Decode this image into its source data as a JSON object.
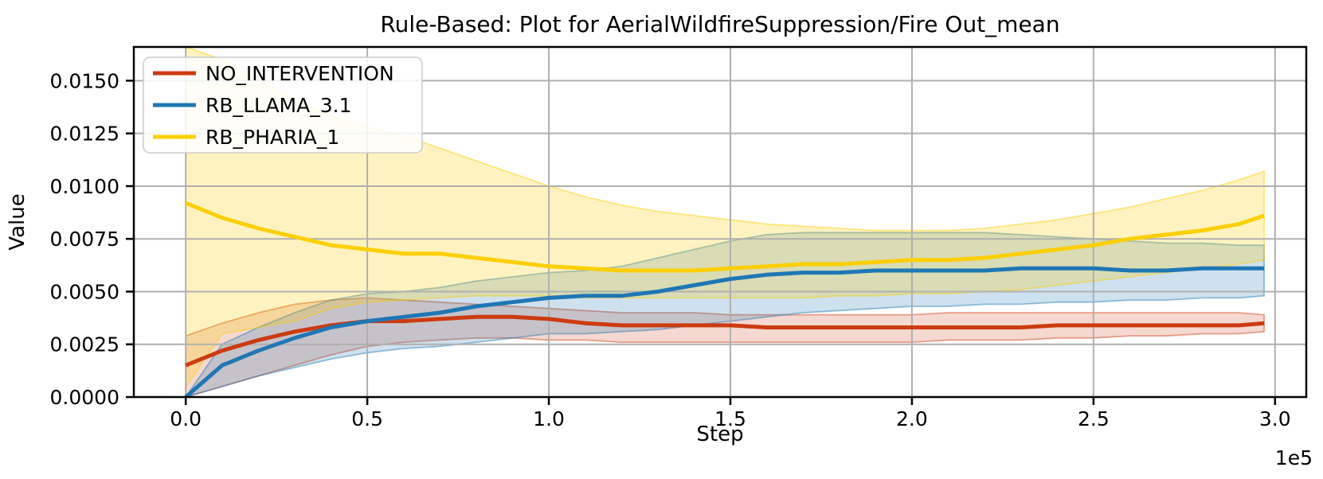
{
  "chart_data": {
    "type": "line",
    "title": "Rule-Based: Plot for AerialWildfireSuppression/Fire Out_mean",
    "xlabel": "Step",
    "ylabel": "Value",
    "x_offset_label": "1e5",
    "xlim": [
      -0.143,
      3.086
    ],
    "ylim": [
      0.0,
      0.0166
    ],
    "grid": true,
    "legend_position": "upper left",
    "xticks": {
      "values": [
        0.0,
        0.5,
        1.0,
        1.5,
        2.0,
        2.5,
        3.0
      ],
      "labels": [
        "0.0",
        "0.5",
        "1.0",
        "1.5",
        "2.0",
        "2.5",
        "3.0"
      ]
    },
    "yticks": {
      "values": [
        0.0,
        0.0025,
        0.005,
        0.0075,
        0.01,
        0.0125,
        0.015
      ],
      "labels": [
        "0.0000",
        "0.0025",
        "0.0050",
        "0.0075",
        "0.0100",
        "0.0125",
        "0.0150"
      ]
    },
    "x": [
      0.0,
      0.1,
      0.2,
      0.3,
      0.4,
      0.5,
      0.6,
      0.7,
      0.8,
      0.9,
      1.0,
      1.1,
      1.2,
      1.3,
      1.4,
      1.5,
      1.6,
      1.7,
      1.8,
      1.9,
      2.0,
      2.1,
      2.2,
      2.3,
      2.4,
      2.5,
      2.6,
      2.7,
      2.8,
      2.9,
      2.97
    ],
    "series": [
      {
        "name": "NO_INTERVENTION",
        "color": "#cc3b11",
        "band_alpha": 0.2,
        "values": [
          0.0015,
          0.0022,
          0.0027,
          0.0031,
          0.0034,
          0.0036,
          0.0036,
          0.0037,
          0.0038,
          0.0038,
          0.0037,
          0.0035,
          0.0034,
          0.0034,
          0.0034,
          0.0034,
          0.0033,
          0.0033,
          0.0033,
          0.0033,
          0.0033,
          0.0033,
          0.0033,
          0.0033,
          0.0034,
          0.0034,
          0.0034,
          0.0034,
          0.0034,
          0.0034,
          0.0035
        ],
        "band_low": [
          0.0,
          0.0005,
          0.001,
          0.0015,
          0.002,
          0.0024,
          0.0026,
          0.0027,
          0.0028,
          0.0028,
          0.0027,
          0.0027,
          0.0026,
          0.0026,
          0.0026,
          0.0026,
          0.0026,
          0.0026,
          0.0026,
          0.0026,
          0.0026,
          0.0027,
          0.0027,
          0.0027,
          0.0028,
          0.0028,
          0.0029,
          0.0029,
          0.003,
          0.003,
          0.0031
        ],
        "band_high": [
          0.0029,
          0.0035,
          0.004,
          0.0044,
          0.0046,
          0.0047,
          0.0046,
          0.0045,
          0.0044,
          0.0043,
          0.0042,
          0.0041,
          0.004,
          0.004,
          0.004,
          0.0039,
          0.0039,
          0.0039,
          0.0039,
          0.0039,
          0.0039,
          0.004,
          0.004,
          0.004,
          0.004,
          0.004,
          0.004,
          0.004,
          0.004,
          0.004,
          0.0039
        ]
      },
      {
        "name": "RB_LLAMA_3.1",
        "color": "#1f77b4",
        "band_alpha": 0.22,
        "values": [
          0.0,
          0.0015,
          0.0022,
          0.0028,
          0.0033,
          0.0036,
          0.0038,
          0.004,
          0.0043,
          0.0045,
          0.0047,
          0.0048,
          0.0048,
          0.005,
          0.0053,
          0.0056,
          0.0058,
          0.0059,
          0.0059,
          0.006,
          0.006,
          0.006,
          0.006,
          0.0061,
          0.0061,
          0.0061,
          0.006,
          0.006,
          0.0061,
          0.0061,
          0.0061
        ],
        "band_low": [
          0.0,
          0.0005,
          0.001,
          0.0014,
          0.0018,
          0.0021,
          0.0023,
          0.0024,
          0.0026,
          0.0028,
          0.003,
          0.003,
          0.0031,
          0.0032,
          0.0034,
          0.0036,
          0.0038,
          0.004,
          0.0041,
          0.0042,
          0.0043,
          0.0043,
          0.0044,
          0.0044,
          0.0045,
          0.0045,
          0.0046,
          0.0046,
          0.0047,
          0.0047,
          0.0048
        ],
        "band_high": [
          0.0,
          0.0025,
          0.0033,
          0.004,
          0.0046,
          0.0049,
          0.005,
          0.0052,
          0.0055,
          0.0057,
          0.0059,
          0.006,
          0.0062,
          0.0066,
          0.007,
          0.0074,
          0.0077,
          0.0078,
          0.0078,
          0.0078,
          0.0078,
          0.0078,
          0.0078,
          0.0077,
          0.0076,
          0.0075,
          0.0074,
          0.0073,
          0.0073,
          0.0072,
          0.0072
        ]
      },
      {
        "name": "RB_PHARIA_1",
        "color": "#fccf05",
        "band_alpha": 0.25,
        "values": [
          0.0092,
          0.0085,
          0.008,
          0.0076,
          0.0072,
          0.007,
          0.0068,
          0.0068,
          0.0066,
          0.0064,
          0.0062,
          0.0061,
          0.006,
          0.006,
          0.006,
          0.0061,
          0.0062,
          0.0063,
          0.0063,
          0.0064,
          0.0065,
          0.0065,
          0.0066,
          0.0068,
          0.007,
          0.0072,
          0.0075,
          0.0077,
          0.0079,
          0.0082,
          0.0086
        ],
        "band_low": [
          0.0005,
          0.003,
          0.0033,
          0.0036,
          0.0042,
          0.0045,
          0.0046,
          0.0047,
          0.0048,
          0.0048,
          0.0048,
          0.0047,
          0.0047,
          0.0047,
          0.0047,
          0.0047,
          0.0047,
          0.0047,
          0.0048,
          0.0048,
          0.0049,
          0.0049,
          0.005,
          0.0051,
          0.0053,
          0.0055,
          0.0057,
          0.0059,
          0.0061,
          0.0063,
          0.0065
        ],
        "band_high": [
          0.0166,
          0.016,
          0.015,
          0.0141,
          0.0133,
          0.0128,
          0.0124,
          0.0118,
          0.0112,
          0.0106,
          0.01,
          0.0095,
          0.0091,
          0.0088,
          0.0086,
          0.0084,
          0.0082,
          0.0081,
          0.008,
          0.0079,
          0.0079,
          0.0079,
          0.008,
          0.0082,
          0.0084,
          0.0087,
          0.009,
          0.0094,
          0.0098,
          0.0103,
          0.0107
        ]
      }
    ]
  },
  "colors": {
    "grid": "#b0b0b0",
    "spine": "#000000",
    "text": "#000000",
    "legend_border": "#cccccc",
    "legend_background": "rgba(255,255,255,0.85)",
    "figure_background": "#ffffff"
  }
}
